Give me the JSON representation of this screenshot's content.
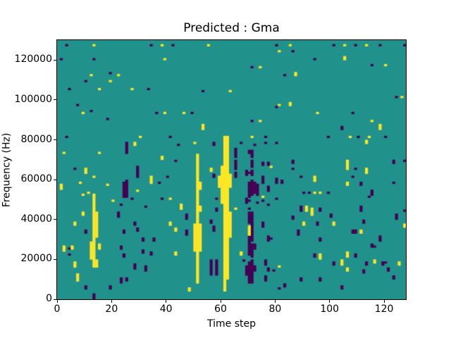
{
  "chart_data": {
    "type": "heatmap",
    "title": "Predicted : Gma",
    "xlabel": "Time step",
    "ylabel": "Frequency (Hz)",
    "xlim": [
      0,
      128
    ],
    "ylim": [
      0,
      130000
    ],
    "xticks": [
      0,
      20,
      40,
      60,
      80,
      100,
      120
    ],
    "yticks": [
      0,
      20000,
      40000,
      60000,
      80000,
      100000,
      120000
    ],
    "grid": false,
    "legend": "none",
    "n_time_steps": 128,
    "n_freq_bins": 130,
    "freq_bin_hz": 1000,
    "colors": {
      "background_mid": "#21918c",
      "high_yellow": "#fde725",
      "low_purple": "#440154",
      "axis": "#000000",
      "figure_background": "#ffffff"
    },
    "encoding": "runs are [time_step, freq_bin_start, freq_bin_end]; freq = bin * 1000 Hz",
    "yellow_runs": [
      [
        1,
        55,
        57
      ],
      [
        2,
        24,
        26
      ],
      [
        2,
        73,
        73
      ],
      [
        5,
        25,
        26
      ],
      [
        6,
        16,
        18
      ],
      [
        6,
        37,
        38
      ],
      [
        7,
        9,
        12
      ],
      [
        8,
        58,
        58
      ],
      [
        9,
        42,
        43
      ],
      [
        9,
        52,
        52
      ],
      [
        9,
        93,
        93
      ],
      [
        10,
        63,
        65
      ],
      [
        11,
        53,
        53
      ],
      [
        12,
        20,
        28
      ],
      [
        12,
        112,
        112
      ],
      [
        13,
        16,
        52
      ],
      [
        13,
        61,
        61
      ],
      [
        13,
        127,
        127
      ],
      [
        14,
        16,
        19
      ],
      [
        14,
        31,
        43
      ],
      [
        15,
        25,
        27
      ],
      [
        15,
        73,
        73
      ],
      [
        15,
        105,
        105
      ],
      [
        18,
        57,
        57
      ],
      [
        19,
        109,
        109
      ],
      [
        20,
        49,
        49
      ],
      [
        22,
        112,
        112
      ],
      [
        27,
        105,
        105
      ],
      [
        28,
        77,
        78
      ],
      [
        29,
        54,
        54
      ],
      [
        30,
        81,
        81
      ],
      [
        34,
        58,
        61
      ],
      [
        38,
        70,
        71
      ],
      [
        38,
        127,
        127
      ],
      [
        39,
        93,
        93
      ],
      [
        39,
        120,
        120
      ],
      [
        41,
        37,
        38
      ],
      [
        41,
        50,
        50
      ],
      [
        43,
        22,
        23
      ],
      [
        43,
        34,
        35
      ],
      [
        45,
        45,
        47
      ],
      [
        46,
        93,
        93
      ],
      [
        48,
        4,
        5
      ],
      [
        50,
        24,
        37
      ],
      [
        50,
        78,
        78
      ],
      [
        51,
        8,
        72
      ],
      [
        52,
        24,
        37
      ],
      [
        52,
        44,
        46
      ],
      [
        52,
        55,
        58
      ],
      [
        53,
        85,
        87
      ],
      [
        55,
        127,
        127
      ],
      [
        56,
        64,
        65
      ],
      [
        59,
        56,
        61
      ],
      [
        60,
        48,
        66
      ],
      [
        61,
        4,
        81
      ],
      [
        62,
        10,
        81
      ],
      [
        63,
        31,
        43
      ],
      [
        63,
        56,
        62
      ],
      [
        63,
        104,
        104
      ],
      [
        65,
        45,
        45
      ],
      [
        67,
        22,
        23
      ],
      [
        70,
        32,
        36
      ],
      [
        71,
        81,
        81
      ],
      [
        74,
        89,
        89
      ],
      [
        74,
        116,
        116
      ],
      [
        75,
        51,
        51
      ],
      [
        78,
        66,
        66
      ],
      [
        81,
        16,
        16
      ],
      [
        81,
        97,
        97
      ],
      [
        81,
        124,
        124
      ],
      [
        85,
        97,
        98
      ],
      [
        85,
        127,
        127
      ],
      [
        87,
        112,
        113
      ],
      [
        90,
        37,
        38
      ],
      [
        91,
        44,
        46
      ],
      [
        93,
        42,
        43
      ],
      [
        93,
        44,
        45
      ],
      [
        94,
        53,
        53
      ],
      [
        94,
        59,
        61
      ],
      [
        95,
        93,
        93
      ],
      [
        96,
        20,
        22
      ],
      [
        96,
        53,
        53
      ],
      [
        101,
        37,
        38
      ],
      [
        104,
        17,
        19
      ],
      [
        105,
        120,
        121
      ],
      [
        105,
        127,
        127
      ],
      [
        106,
        14,
        15
      ],
      [
        106,
        21,
        23
      ],
      [
        106,
        57,
        58
      ],
      [
        106,
        65,
        69
      ],
      [
        107,
        81,
        81
      ],
      [
        111,
        33,
        34
      ],
      [
        113,
        63,
        65
      ],
      [
        113,
        78,
        79
      ],
      [
        113,
        127,
        127
      ],
      [
        114,
        81,
        81
      ],
      [
        115,
        89,
        89
      ],
      [
        116,
        18,
        19
      ],
      [
        118,
        85,
        87
      ],
      [
        120,
        117,
        117
      ],
      [
        125,
        17,
        18
      ],
      [
        126,
        101,
        101
      ],
      [
        127,
        36,
        37
      ]
    ],
    "purple_runs": [
      [
        1,
        120,
        120
      ],
      [
        3,
        81,
        81
      ],
      [
        3,
        127,
        127
      ],
      [
        4,
        22,
        22
      ],
      [
        4,
        25,
        25
      ],
      [
        4,
        105,
        105
      ],
      [
        6,
        65,
        65
      ],
      [
        7,
        97,
        97
      ],
      [
        10,
        5,
        6
      ],
      [
        10,
        33,
        34
      ],
      [
        10,
        109,
        109
      ],
      [
        12,
        94,
        94
      ],
      [
        13,
        0,
        2
      ],
      [
        13,
        120,
        120
      ],
      [
        18,
        90,
        90
      ],
      [
        19,
        5,
        6
      ],
      [
        19,
        113,
        113
      ],
      [
        22,
        41,
        43
      ],
      [
        23,
        8,
        10
      ],
      [
        23,
        25,
        26
      ],
      [
        23,
        47,
        47
      ],
      [
        24,
        21,
        22
      ],
      [
        24,
        33,
        34
      ],
      [
        24,
        51,
        58
      ],
      [
        25,
        9,
        10
      ],
      [
        25,
        51,
        59
      ],
      [
        25,
        73,
        78
      ],
      [
        27,
        50,
        50
      ],
      [
        28,
        15,
        17
      ],
      [
        28,
        37,
        38
      ],
      [
        29,
        34,
        35
      ],
      [
        29,
        61,
        66
      ],
      [
        31,
        23,
        24
      ],
      [
        31,
        29,
        30
      ],
      [
        32,
        14,
        16
      ],
      [
        32,
        46,
        46
      ],
      [
        33,
        105,
        105
      ],
      [
        34,
        22,
        23
      ],
      [
        34,
        127,
        127
      ],
      [
        35,
        29,
        30
      ],
      [
        36,
        93,
        93
      ],
      [
        37,
        58,
        58
      ],
      [
        38,
        50,
        50
      ],
      [
        40,
        61,
        61
      ],
      [
        41,
        81,
        81
      ],
      [
        42,
        127,
        127
      ],
      [
        43,
        69,
        69
      ],
      [
        44,
        77,
        77
      ],
      [
        47,
        32,
        34
      ],
      [
        47,
        40,
        42
      ],
      [
        49,
        93,
        93
      ],
      [
        53,
        104,
        104
      ],
      [
        56,
        12,
        19
      ],
      [
        56,
        38,
        39
      ],
      [
        57,
        34,
        36
      ],
      [
        57,
        61,
        62
      ],
      [
        57,
        77,
        78
      ],
      [
        58,
        12,
        19
      ],
      [
        58,
        44,
        45
      ],
      [
        58,
        50,
        50
      ],
      [
        65,
        61,
        63
      ],
      [
        65,
        65,
        69
      ],
      [
        65,
        71,
        75
      ],
      [
        67,
        78,
        78
      ],
      [
        68,
        19,
        19
      ],
      [
        69,
        12,
        16
      ],
      [
        69,
        48,
        50
      ],
      [
        69,
        62,
        64
      ],
      [
        70,
        8,
        18
      ],
      [
        70,
        22,
        31
      ],
      [
        70,
        38,
        43
      ],
      [
        70,
        45,
        45
      ],
      [
        70,
        49,
        49
      ],
      [
        70,
        51,
        58
      ],
      [
        70,
        63,
        63
      ],
      [
        70,
        73,
        74
      ],
      [
        71,
        8,
        19
      ],
      [
        71,
        21,
        27
      ],
      [
        71,
        29,
        43
      ],
      [
        71,
        52,
        59
      ],
      [
        71,
        62,
        64
      ],
      [
        71,
        66,
        69
      ],
      [
        71,
        71,
        74
      ],
      [
        71,
        89,
        89
      ],
      [
        71,
        116,
        116
      ],
      [
        72,
        14,
        16
      ],
      [
        72,
        25,
        27
      ],
      [
        72,
        53,
        58
      ],
      [
        72,
        77,
        77
      ],
      [
        73,
        48,
        48
      ],
      [
        73,
        52,
        57
      ],
      [
        75,
        36,
        38
      ],
      [
        75,
        49,
        49
      ],
      [
        75,
        58,
        61
      ],
      [
        75,
        67,
        68
      ],
      [
        76,
        9,
        11
      ],
      [
        76,
        17,
        19
      ],
      [
        76,
        78,
        78
      ],
      [
        76,
        81,
        81
      ],
      [
        77,
        14,
        15
      ],
      [
        77,
        29,
        31
      ],
      [
        77,
        47,
        47
      ],
      [
        77,
        54,
        56
      ],
      [
        77,
        67,
        68
      ],
      [
        78,
        30,
        30
      ],
      [
        79,
        14,
        14
      ],
      [
        80,
        50,
        50
      ],
      [
        80,
        58,
        60
      ],
      [
        80,
        78,
        78
      ],
      [
        80,
        96,
        96
      ],
      [
        80,
        127,
        127
      ],
      [
        81,
        5,
        5
      ],
      [
        82,
        58,
        59
      ],
      [
        83,
        6,
        7
      ],
      [
        83,
        112,
        112
      ],
      [
        86,
        40,
        41
      ],
      [
        86,
        65,
        65
      ],
      [
        86,
        68,
        69
      ],
      [
        86,
        124,
        124
      ],
      [
        88,
        32,
        34
      ],
      [
        89,
        9,
        10
      ],
      [
        89,
        44,
        46
      ],
      [
        89,
        61,
        61
      ],
      [
        90,
        53,
        53
      ],
      [
        92,
        53,
        53
      ],
      [
        94,
        21,
        22
      ],
      [
        94,
        120,
        120
      ],
      [
        95,
        37,
        38
      ],
      [
        96,
        9,
        10
      ],
      [
        96,
        29,
        30
      ],
      [
        96,
        44,
        45
      ],
      [
        99,
        53,
        53
      ],
      [
        99,
        81,
        81
      ],
      [
        100,
        41,
        42
      ],
      [
        101,
        17,
        18
      ],
      [
        101,
        127,
        127
      ],
      [
        104,
        5,
        6
      ],
      [
        104,
        85,
        86
      ],
      [
        108,
        33,
        34
      ],
      [
        108,
        61,
        61
      ],
      [
        108,
        93,
        93
      ],
      [
        109,
        21,
        22
      ],
      [
        109,
        33,
        34
      ],
      [
        109,
        65,
        65
      ],
      [
        109,
        127,
        127
      ],
      [
        110,
        81,
        81
      ],
      [
        111,
        44,
        46
      ],
      [
        111,
        57,
        58
      ],
      [
        112,
        13,
        14
      ],
      [
        112,
        38,
        39
      ],
      [
        113,
        17,
        18
      ],
      [
        114,
        51,
        51
      ],
      [
        115,
        26,
        27
      ],
      [
        115,
        52,
        54
      ],
      [
        115,
        117,
        117
      ],
      [
        116,
        26,
        26
      ],
      [
        118,
        29,
        31
      ],
      [
        118,
        127,
        127
      ],
      [
        119,
        17,
        18
      ],
      [
        120,
        18,
        18
      ],
      [
        120,
        81,
        81
      ],
      [
        121,
        14,
        15
      ],
      [
        123,
        10,
        11
      ],
      [
        123,
        58,
        58
      ],
      [
        123,
        68,
        69
      ],
      [
        124,
        40,
        42
      ],
      [
        124,
        101,
        101
      ],
      [
        127,
        44,
        44
      ],
      [
        127,
        69,
        69
      ],
      [
        127,
        127,
        127
      ]
    ]
  }
}
